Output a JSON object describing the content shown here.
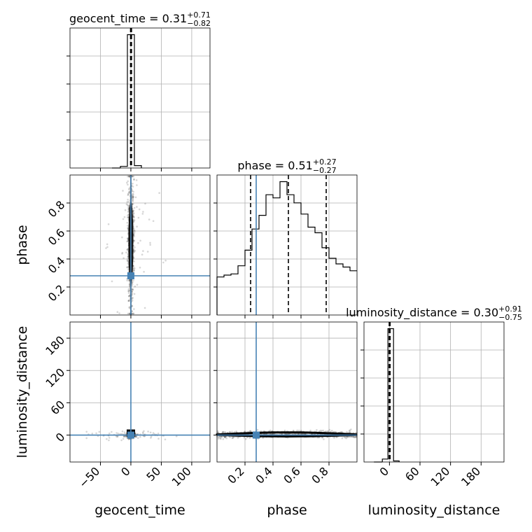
{
  "chart_data": {
    "type": "corner",
    "parameters": [
      "geocent_time",
      "phase",
      "luminosity_distance"
    ],
    "truths": {
      "geocent_time": 0.0,
      "phase": 0.28,
      "luminosity_distance": 0.0
    },
    "grid": true,
    "diagonal": [
      {
        "param": "geocent_time",
        "title_main": "geocent_time = 0.31",
        "title_plus": "+0.71",
        "title_minus": "−0.82",
        "xlim": [
          -100,
          130
        ],
        "quantiles": [
          -0.51,
          0.31,
          1.02
        ],
        "bin_edges": [
          -17.2,
          -5.7,
          5.8,
          17.3
        ],
        "counts": [
          12,
          1000,
          18
        ]
      },
      {
        "param": "phase",
        "title_main": "phase = 0.51",
        "title_plus": "+0.27",
        "title_minus": "−0.27",
        "xlim": [
          0.0,
          1.0
        ],
        "quantiles": [
          0.24,
          0.51,
          0.78
        ],
        "bin_edges": [
          0.0,
          0.05,
          0.1,
          0.15,
          0.2,
          0.25,
          0.3,
          0.35,
          0.4,
          0.45,
          0.5,
          0.55,
          0.6,
          0.65,
          0.7,
          0.75,
          0.8,
          0.85,
          0.9,
          0.95,
          1.0
        ],
        "counts": [
          305,
          320,
          330,
          395,
          520,
          690,
          800,
          965,
          940,
          1070,
          965,
          900,
          810,
          705,
          660,
          540,
          455,
          410,
          385,
          355
        ]
      },
      {
        "param": "luminosity_distance",
        "title_main": "luminosity_distance = 0.30",
        "title_plus": "+0.91",
        "title_minus": "−0.75",
        "xlim": [
          -50,
          225
        ],
        "quantiles": [
          -0.45,
          0.3,
          1.21
        ],
        "bin_edges": [
          -14,
          -3,
          8,
          19
        ],
        "counts": [
          22,
          1000,
          8
        ]
      }
    ],
    "scatter_2d": [
      {
        "x": "geocent_time",
        "y": "phase",
        "xlim": [
          -100,
          130
        ],
        "ylim": [
          0.0,
          1.0
        ]
      },
      {
        "x": "geocent_time",
        "y": "luminosity_distance",
        "xlim": [
          -100,
          130
        ],
        "ylim": [
          -50,
          210
        ]
      },
      {
        "x": "phase",
        "y": "luminosity_distance",
        "xlim": [
          0.0,
          1.0
        ],
        "ylim": [
          -50,
          210
        ]
      }
    ],
    "ticks": {
      "geocent_time": {
        "values": [
          -50,
          0,
          50,
          100
        ],
        "labels": [
          "−50",
          "0",
          "50",
          "100"
        ]
      },
      "phase": {
        "values": [
          0.2,
          0.4,
          0.6,
          0.8
        ],
        "labels": [
          "0.2",
          "0.4",
          "0.6",
          "0.8"
        ]
      },
      "luminosity_distance_y": {
        "values": [
          0,
          60,
          120,
          180
        ],
        "labels": [
          "0",
          "60",
          "120",
          "180"
        ]
      },
      "luminosity_distance_x": {
        "values": [
          0,
          60,
          120,
          180
        ],
        "labels": [
          "0",
          "60",
          "120",
          "180"
        ]
      }
    },
    "xlabels": [
      "geocent_time",
      "phase",
      "luminosity_distance"
    ],
    "ylabels": [
      "phase",
      "luminosity_distance"
    ]
  }
}
